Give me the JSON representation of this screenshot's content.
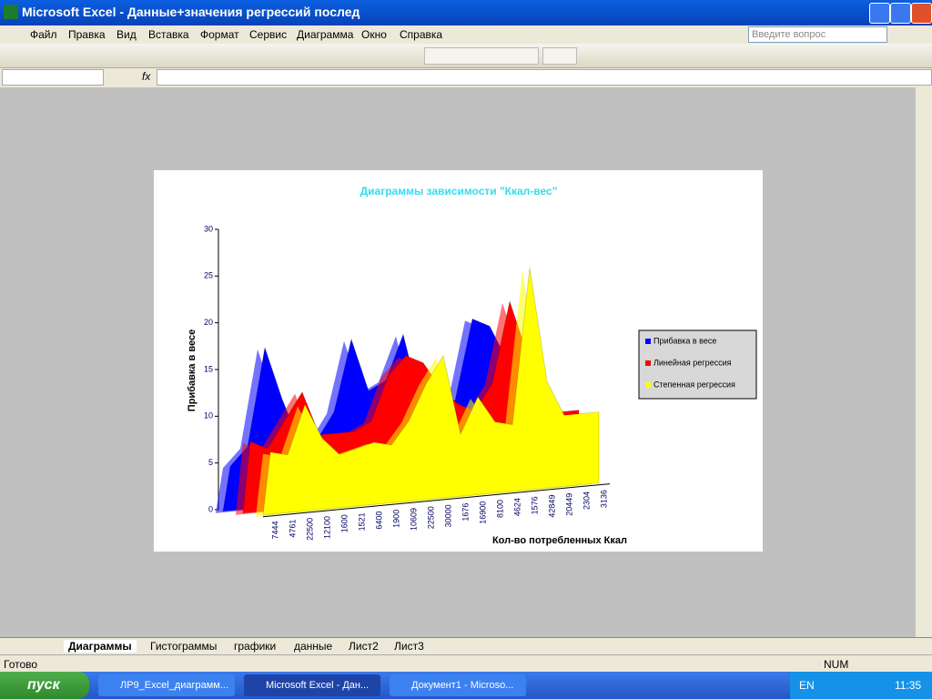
{
  "window": {
    "title": "Microsoft Excel - Данные+значения регрессий послед",
    "menu": [
      "Файл",
      "Правка",
      "Вид",
      "Вставка",
      "Формат",
      "Сервис",
      "Диаграмма",
      "Окно",
      "Справка"
    ],
    "help_box": "Введите вопрос",
    "fx": "fx"
  },
  "chart_data": {
    "type": "area3d",
    "title": "Диаграммы зависимости \"Ккал-вес\"",
    "x_label": "Кол-во потребленных Ккал",
    "y_label": "Прибавка в весе",
    "categories": [
      "7444",
      "4761",
      "22500",
      "12100",
      "1600",
      "1521",
      "6400",
      "1900",
      "10609",
      "22500",
      "30000",
      "1676",
      "16900",
      "8100",
      "4624",
      "1576",
      "42849",
      "20449",
      "2304",
      "3136"
    ],
    "series": [
      {
        "name": "Прибавка в весе",
        "color": "#0000ff",
        "values": [
          5,
          7,
          18,
          12,
          7,
          7,
          10,
          18,
          12,
          13,
          18,
          10,
          9,
          10,
          19,
          18,
          14,
          10,
          8,
          8
        ]
      },
      {
        "name": "Линейная регрессия",
        "color": "#ff0000",
        "values": [
          8,
          7,
          10,
          13,
          8,
          8,
          8,
          9,
          14,
          16,
          15,
          12,
          10,
          9,
          12,
          21,
          15,
          10,
          8,
          8
        ]
      },
      {
        "name": "Степенная регрессия",
        "color": "#ffff00",
        "values": [
          7,
          6.5,
          12,
          8,
          6,
          6.5,
          7,
          6.5,
          9,
          13,
          16,
          7,
          11,
          8,
          7.5,
          25,
          12,
          8,
          8,
          8
        ]
      }
    ],
    "ylim": [
      0,
      30
    ],
    "yticks": [
      0,
      5,
      10,
      15,
      20,
      25,
      30
    ],
    "legend": "right"
  },
  "sheets": [
    "Диаграммы",
    "Гистограммы",
    "графики",
    "данные",
    "Лист2",
    "Лист3"
  ],
  "status": {
    "left": "Готово",
    "num": "NUM"
  },
  "taskbar": {
    "start": "пуск",
    "tasks": [
      "ЛР9_Excel_диаграмм...",
      "Microsoft Excel - Дан...",
      "Документ1 - Microso..."
    ],
    "lang": "EN",
    "clock": "11:35"
  }
}
